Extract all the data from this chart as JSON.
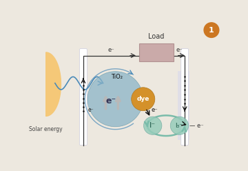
{
  "bg_color": "#ede8df",
  "figure_number": "1",
  "figure_number_bg": "#cc7722",
  "figure_number_color": "#ffffff",
  "sun_color": "#f5c878",
  "electrode_color_left": "#e8e8ee",
  "electrode_color_right": "#dde0ee",
  "electrode_border": "#b8b8cc",
  "tio2_color": "#8ab4c8",
  "tio2_alpha": 0.75,
  "dye_color": "#d4912a",
  "iodide_color": "#96ccba",
  "triiodide_color": "#96ccba",
  "load_color": "#c4a0a0",
  "wave_color": "#4a8ab8",
  "arrow_color": "#222222",
  "circuit_color": "#333333",
  "green_arrow_color": "#7abcaa",
  "solar_energy_text": "Solar energy",
  "tio2_text": "TiO₂",
  "dye_text": "dye",
  "iodide_text": "I⁻",
  "triiodide_text": "I₃⁻",
  "eminus": "e⁻",
  "load_text": "Load"
}
